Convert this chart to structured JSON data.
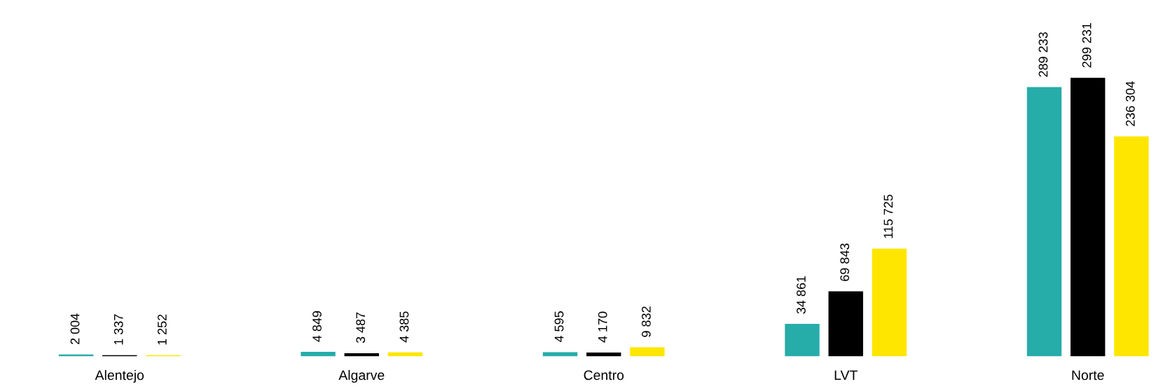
{
  "chart_data": {
    "type": "bar",
    "categories": [
      "Alentejo",
      "Algarve",
      "Centro",
      "LVT",
      "Norte"
    ],
    "series": [
      {
        "color": "#26aca9",
        "values": [
          2004,
          4849,
          4595,
          34861,
          289233
        ],
        "value_labels": [
          "2 004",
          "4 849",
          "4 595",
          "34 861",
          "289 233"
        ]
      },
      {
        "color": "#000000",
        "values": [
          1337,
          3487,
          4170,
          69843,
          299231
        ],
        "value_labels": [
          "1 337",
          "3 487",
          "4 170",
          "69 843",
          "299 231"
        ]
      },
      {
        "color": "#ffe600",
        "values": [
          1252,
          4385,
          9832,
          115725,
          236304
        ],
        "value_labels": [
          "1 252",
          "4 385",
          "9 832",
          "115 725",
          "236 304"
        ]
      }
    ]
  }
}
